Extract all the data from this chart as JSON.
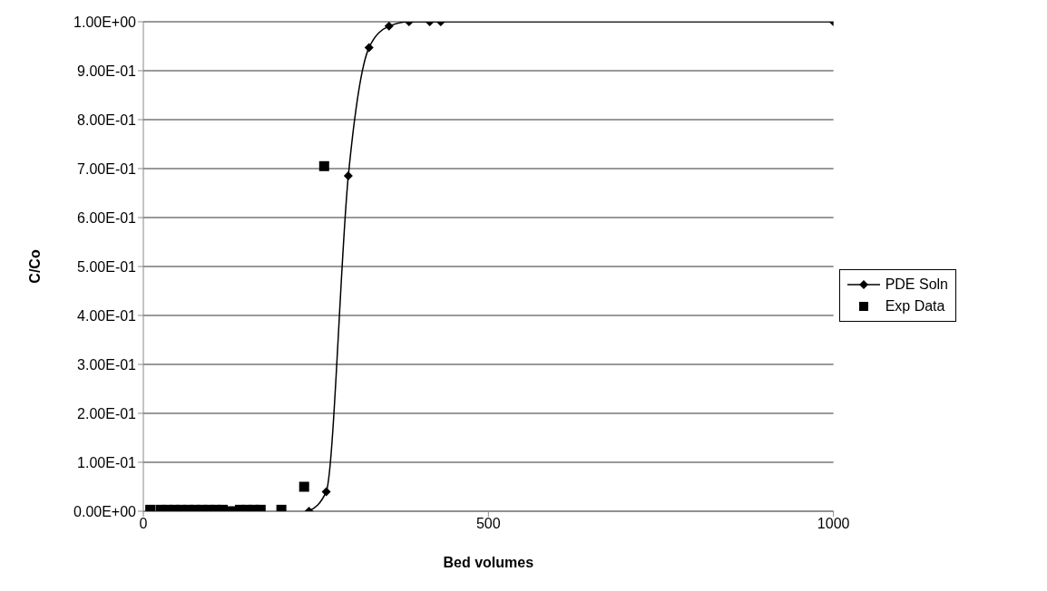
{
  "chart_data": {
    "type": "line",
    "xlabel": "Bed volumes",
    "ylabel": "C/Co",
    "xlim": [
      0,
      1000
    ],
    "xticks": [
      0,
      500,
      1000
    ],
    "ylim": [
      0,
      1
    ],
    "yticks": [
      {
        "value": 0,
        "label": "0.00E+00"
      },
      {
        "value": 0.1,
        "label": "1.00E-01"
      },
      {
        "value": 0.2,
        "label": "2.00E-01"
      },
      {
        "value": 0.3,
        "label": "3.00E-01"
      },
      {
        "value": 0.4,
        "label": "4.00E-01"
      },
      {
        "value": 0.5,
        "label": "5.00E-01"
      },
      {
        "value": 0.6,
        "label": "6.00E-01"
      },
      {
        "value": 0.7,
        "label": "7.00E-01"
      },
      {
        "value": 0.8,
        "label": "8.00E-01"
      },
      {
        "value": 0.9,
        "label": "9.00E-01"
      },
      {
        "value": 1,
        "label": "1.00E+00"
      }
    ],
    "grid": "y",
    "legend": "right",
    "series": [
      {
        "name": "PDE Soln",
        "color": "#000000",
        "marker": "diamond",
        "x": [
          240,
          265,
          297,
          327,
          356,
          385,
          415,
          431,
          1000
        ],
        "values": [
          0,
          0.04,
          0.685,
          0.947,
          0.991,
          1,
          1,
          1,
          1
        ]
      },
      {
        "name": "Exp Data",
        "type": "scatter",
        "color": "#000000",
        "marker": "square",
        "x": [
          10,
          25,
          35,
          45,
          55,
          65,
          75,
          85,
          95,
          105,
          115,
          128,
          140,
          150,
          160,
          170,
          200,
          233,
          262
        ],
        "values": [
          0.003,
          0.003,
          0.003,
          0.003,
          0.003,
          0.003,
          0.003,
          0.003,
          0.003,
          0.003,
          0.003,
          0,
          0.003,
          0.003,
          0.003,
          0.003,
          0.003,
          0.05,
          0.705
        ]
      }
    ]
  }
}
